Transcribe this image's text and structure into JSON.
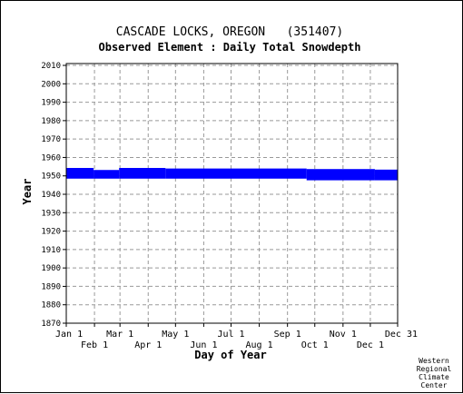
{
  "chart_data": {
    "type": "area",
    "title": "CASCADE LOCKS, OREGON   (351407)",
    "subtitle": "Observed Element : Daily Total Snowdepth",
    "xlabel": "Day of Year",
    "ylabel": "Year",
    "xlim": [
      "Jan 1",
      "Dec 31"
    ],
    "ylim": [
      1870,
      2011
    ],
    "y_ticks": [
      "1870",
      "1880",
      "1890",
      "1900",
      "1910",
      "1920",
      "1930",
      "1940",
      "1950",
      "1960",
      "1970",
      "1980",
      "1990",
      "2000",
      "2010"
    ],
    "x_ticks_upper": [
      "Jan 1",
      "Mar 1",
      "May 1",
      "Jul 1",
      "Sep 1",
      "Nov 1",
      "Dec 31"
    ],
    "x_ticks_lower": [
      "Feb 1",
      "Apr 1",
      "Jun 1",
      "Aug 1",
      "Oct 1",
      "Dec 1"
    ],
    "grid": true,
    "series_color": "#0000ff",
    "coverage": [
      {
        "start_day": 1,
        "end_day": 31,
        "year_from": 1948.5,
        "year_to": 1954.3
      },
      {
        "start_day": 31,
        "end_day": 59,
        "year_from": 1948.5,
        "year_to": 1953.2
      },
      {
        "start_day": 59,
        "end_day": 110,
        "year_from": 1948.5,
        "year_to": 1954.3
      },
      {
        "start_day": 110,
        "end_day": 265,
        "year_from": 1948.5,
        "year_to": 1954.0
      },
      {
        "start_day": 265,
        "end_day": 340,
        "year_from": 1947.6,
        "year_to": 1953.7
      },
      {
        "start_day": 340,
        "end_day": 365,
        "year_from": 1947.6,
        "year_to": 1953.4
      }
    ]
  },
  "credit": {
    "line1": "Western",
    "line2": "Regional",
    "line3": "Climate",
    "line4": "Center"
  }
}
